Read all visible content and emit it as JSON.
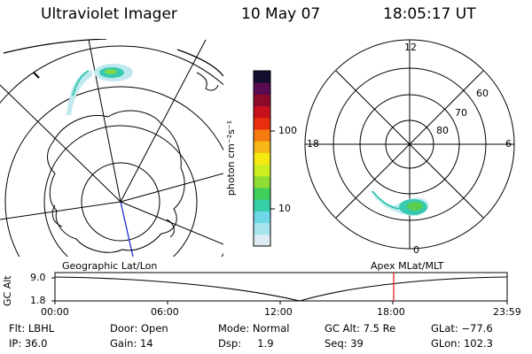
{
  "header": {
    "instrument": "Ultraviolet Imager",
    "date": "10 May 07",
    "time": "18:05:17 UT"
  },
  "colorbar": {
    "unit_label": "photon cm⁻²s⁻¹",
    "tick_100": "100",
    "tick_10": "10",
    "colors": [
      "#dcecf2",
      "#a8e4ee",
      "#6fd8e8",
      "#35cfa8",
      "#3fcf5a",
      "#8fdd34",
      "#ccee20",
      "#f5ea10",
      "#f7b818",
      "#f57a10",
      "#e82e0c",
      "#c8101c",
      "#8c0b2a",
      "#5a0a52",
      "#12102e"
    ]
  },
  "geo_map": {
    "caption": "Geographic Lat/Lon"
  },
  "mag_plot": {
    "caption": "Apex  MLat/MLT",
    "mlt_top": "12",
    "mlt_left": "18",
    "mlt_right": "6",
    "mlt_bottom": "0",
    "lat_60": "60",
    "lat_70": "70",
    "lat_80": "80"
  },
  "alt_strip": {
    "axis_label": "GC Alt",
    "y_top": "9.0",
    "y_bottom": "1.8",
    "x_ticks": [
      "00:00",
      "06:00",
      "12:00",
      "18:00",
      "23:59"
    ],
    "marker_color": "#e02020"
  },
  "info": {
    "flt": "Flt: LBHL",
    "ip": "IP: 36.0",
    "door": "Door: Open",
    "gain": "Gain: 14",
    "mode": "Mode: Normal",
    "dsp": "Dsp:     1.9",
    "gc_alt": "GC Alt: 7.5 Re",
    "seq": "Seq: 39",
    "glat": "GLat: −77.6",
    "glon": "GLon: 102.3"
  }
}
